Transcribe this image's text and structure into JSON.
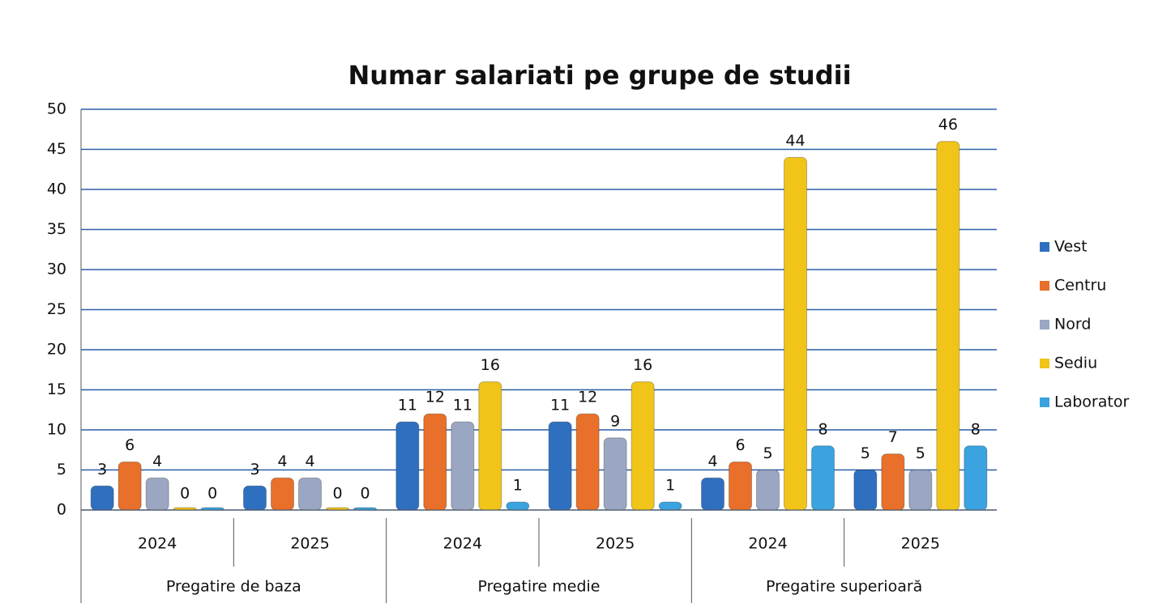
{
  "chart_data": {
    "type": "bar",
    "title": "Numar salariati pe grupe de studii",
    "groups": [
      {
        "name": "Pregatire de baza",
        "categories": [
          "2024",
          "2025"
        ]
      },
      {
        "name": "Pregatire medie",
        "categories": [
          "2024",
          "2025"
        ]
      },
      {
        "name": "Pregatire superioară",
        "categories": [
          "2024",
          "2025"
        ]
      }
    ],
    "series": [
      {
        "name": "Vest",
        "color": "#2f6fbf",
        "values": [
          3,
          3,
          11,
          11,
          4,
          5
        ]
      },
      {
        "name": "Centru",
        "color": "#e8702a",
        "values": [
          6,
          4,
          12,
          12,
          6,
          7
        ]
      },
      {
        "name": "Nord",
        "color": "#9aa6c2",
        "values": [
          4,
          4,
          11,
          9,
          5,
          5
        ]
      },
      {
        "name": "Sediu",
        "color": "#f0c419",
        "values": [
          0,
          0,
          16,
          16,
          44,
          46
        ]
      },
      {
        "name": "Laborator",
        "color": "#3aa3e0",
        "values": [
          0,
          0,
          1,
          1,
          8,
          8
        ]
      }
    ],
    "ylim": [
      0,
      50
    ],
    "yticks": [
      0,
      5,
      10,
      15,
      20,
      25,
      30,
      35,
      40,
      45,
      50
    ],
    "grid": true,
    "legend": "right"
  }
}
